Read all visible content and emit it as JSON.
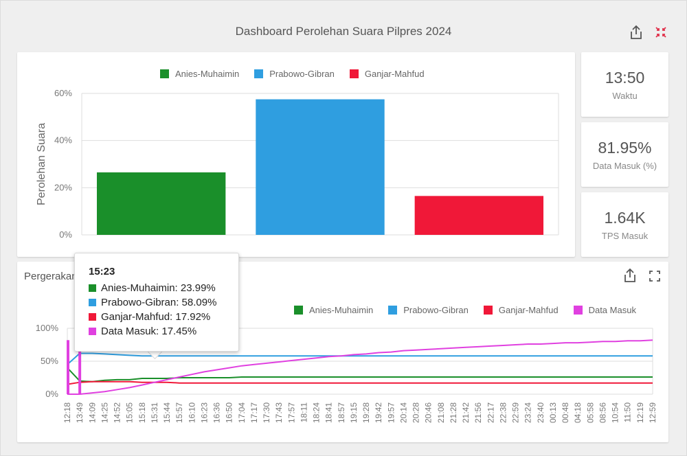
{
  "header": {
    "title": "Dashboard Perolehan Suara Pilpres 2024"
  },
  "colors": {
    "anies": "#1a8f2a",
    "prabowo": "#2f9ee0",
    "ganjar": "#f01838",
    "data_masuk": "#e040e0"
  },
  "stats": [
    {
      "value": "13:50",
      "label": "Waktu"
    },
    {
      "value": "81.95%",
      "label": "Data Masuk (%)"
    },
    {
      "value": "1.64K",
      "label": "TPS Masuk"
    }
  ],
  "bar_legend": [
    "Anies-Muhaimin",
    "Prabowo-Gibran",
    "Ganjar-Mahfud"
  ],
  "line_panel": {
    "title": "Pergerakan"
  },
  "line_legend": [
    "Anies-Muhaimin",
    "Prabowo-Gibran",
    "Ganjar-Mahfud",
    "Data Masuk"
  ],
  "tooltip": {
    "title": "15:23",
    "rows": [
      "Anies-Muhaimin: 23.99%",
      "Prabowo-Gibran: 58.09%",
      "Ganjar-Mahfud: 17.92%",
      "Data Masuk: 17.45%"
    ]
  },
  "chart_data": [
    {
      "type": "bar",
      "categories": [
        "Anies-Muhaimin",
        "Prabowo-Gibran",
        "Ganjar-Mahfud"
      ],
      "values": [
        26.5,
        57.5,
        16.5
      ],
      "ylabel": "Perolehan Suara",
      "ylim": [
        0,
        60
      ],
      "yticks": [
        "0%",
        "20%",
        "40%",
        "60%"
      ],
      "legend": "top-center",
      "grid": true
    },
    {
      "type": "line",
      "ylim": [
        0,
        100
      ],
      "yticks": [
        "0%",
        "50%",
        "100%"
      ],
      "x": [
        "12:18",
        "13:49",
        "14:09",
        "14:25",
        "14:52",
        "15:05",
        "15:18",
        "15:31",
        "15:44",
        "15:57",
        "16:10",
        "16:23",
        "16:36",
        "16:50",
        "17:04",
        "17:17",
        "17:30",
        "17:43",
        "17:57",
        "18:11",
        "18:24",
        "18:41",
        "18:57",
        "19:15",
        "19:28",
        "19:42",
        "19:57",
        "20:14",
        "20:28",
        "20:46",
        "21:08",
        "21:28",
        "21:42",
        "21:56",
        "22:17",
        "22:38",
        "22:59",
        "23:24",
        "23:40",
        "00:13",
        "00:48",
        "04:18",
        "05:58",
        "08:56",
        "10:54",
        "11:50",
        "12:19",
        "12:59"
      ],
      "series": [
        {
          "name": "Anies-Muhaimin",
          "values": [
            40,
            20,
            19,
            21,
            22,
            22,
            24,
            24,
            24,
            25,
            25,
            25,
            25,
            25,
            26,
            26,
            26,
            26,
            26,
            26,
            26,
            26,
            26,
            26,
            26,
            26,
            26,
            26,
            26,
            26,
            26,
            26,
            26,
            26,
            26,
            26,
            26,
            26,
            26,
            26,
            26,
            26,
            26,
            26,
            26,
            26,
            26,
            26
          ]
        },
        {
          "name": "Prabowo-Gibran",
          "values": [
            45,
            62,
            62,
            61,
            60,
            59,
            58,
            58,
            58,
            58,
            58,
            58,
            58,
            58,
            58,
            58,
            58,
            58,
            58,
            58,
            58,
            58,
            58,
            58,
            58,
            58,
            58,
            58,
            58,
            58,
            58,
            58,
            58,
            58,
            58,
            58,
            58,
            58,
            58,
            58,
            58,
            58,
            58,
            58,
            58,
            58,
            58,
            58
          ]
        },
        {
          "name": "Ganjar-Mahfud",
          "values": [
            15,
            18,
            19,
            19,
            19,
            19,
            18,
            18,
            18,
            17,
            17,
            17,
            17,
            17,
            17,
            17,
            17,
            17,
            17,
            17,
            17,
            17,
            17,
            17,
            17,
            17,
            17,
            17,
            17,
            17,
            17,
            17,
            17,
            17,
            17,
            17,
            17,
            17,
            17,
            17,
            17,
            17,
            17,
            17,
            17,
            17,
            17,
            17
          ]
        },
        {
          "name": "Data Masuk",
          "values": [
            0,
            0,
            2,
            4,
            7,
            10,
            14,
            18,
            22,
            26,
            30,
            34,
            37,
            40,
            43,
            45,
            47,
            49,
            51,
            53,
            55,
            57,
            58,
            60,
            61,
            63,
            64,
            66,
            67,
            68,
            69,
            70,
            71,
            72,
            73,
            74,
            75,
            76,
            76,
            77,
            78,
            78,
            79,
            80,
            80,
            81,
            81,
            82
          ]
        }
      ],
      "legend": "top-right",
      "grid": true
    }
  ]
}
